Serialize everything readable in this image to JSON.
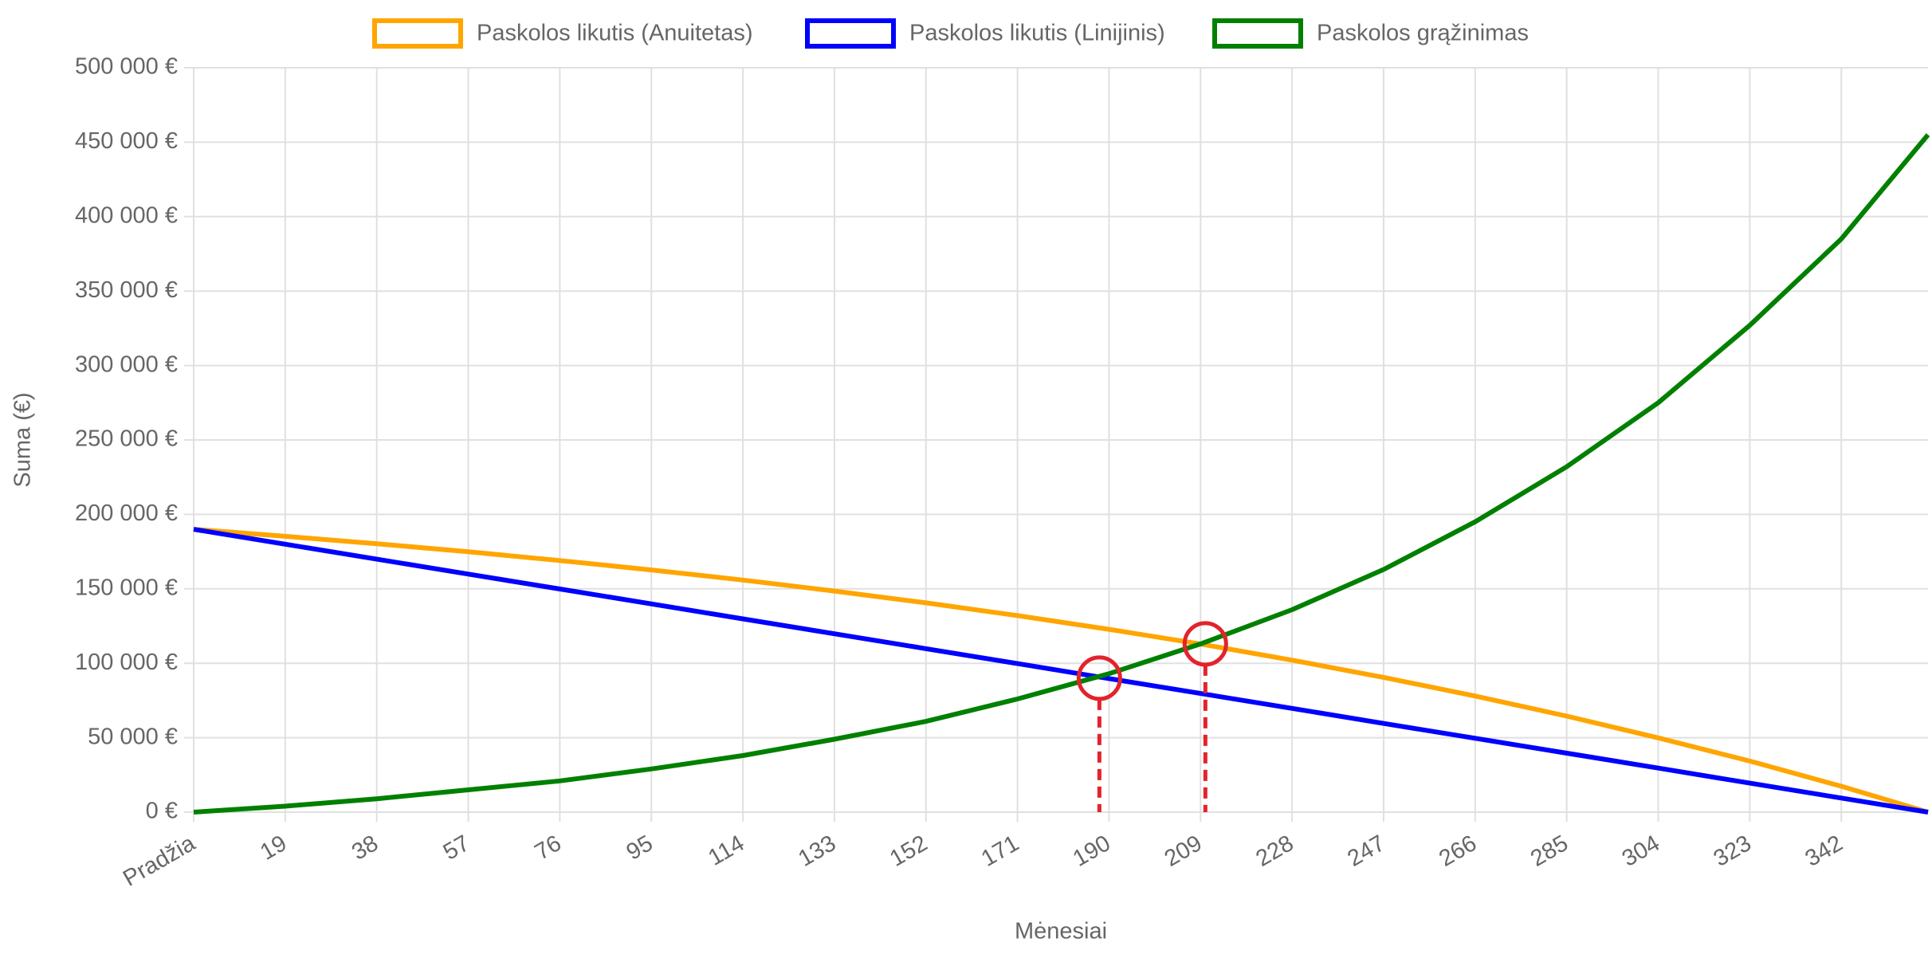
{
  "chart_data": {
    "type": "line",
    "x_label": "Mėnesiai",
    "y_label": "Suma (€)",
    "x": [
      0,
      19,
      38,
      57,
      76,
      95,
      114,
      133,
      152,
      171,
      190,
      209,
      228,
      247,
      266,
      285,
      304,
      323,
      342,
      360
    ],
    "xlim": [
      0,
      360
    ],
    "xticks": [
      {
        "value": 0,
        "label": "Pradžia"
      },
      19,
      38,
      57,
      76,
      95,
      114,
      133,
      152,
      171,
      190,
      209,
      228,
      247,
      266,
      285,
      304,
      323,
      342
    ],
    "ylim": [
      0,
      500000
    ],
    "yticks": [
      {
        "value": 0,
        "label": "0 €"
      },
      {
        "value": 50000,
        "label": "50 000 €"
      },
      {
        "value": 100000,
        "label": "100 000 €"
      },
      {
        "value": 150000,
        "label": "150 000 €"
      },
      {
        "value": 200000,
        "label": "200 000 €"
      },
      {
        "value": 250000,
        "label": "250 000 €"
      },
      {
        "value": 300000,
        "label": "300 000 €"
      },
      {
        "value": 350000,
        "label": "350 000 €"
      },
      {
        "value": 400000,
        "label": "400 000 €"
      },
      {
        "value": 450000,
        "label": "450 000 €"
      },
      {
        "value": 500000,
        "label": "500 000 €"
      }
    ],
    "grid": true,
    "series": [
      {
        "name": "Paskolos likutis (Anuitetas)",
        "color": "#ffa500",
        "values": [
          190000,
          185300,
          180300,
          174900,
          169000,
          162700,
          155900,
          148500,
          140600,
          132000,
          122800,
          112900,
          102100,
          90500,
          78000,
          64500,
          49900,
          34300,
          17400,
          0
        ]
      },
      {
        "name": "Paskolos likutis (Linijinis)",
        "color": "#0000ff",
        "values": [
          190000,
          180000,
          169900,
          159900,
          149900,
          139900,
          129800,
          119800,
          109800,
          99800,
          89700,
          79700,
          69700,
          59600,
          49600,
          39600,
          29600,
          19500,
          9500,
          0
        ]
      },
      {
        "name": "Paskolos grąžinimas",
        "color": "#008000",
        "values": [
          0,
          4000,
          9000,
          15000,
          21000,
          29000,
          38000,
          49000,
          61000,
          76000,
          93000,
          113000,
          136000,
          163000,
          195000,
          232000,
          275000,
          327000,
          385000,
          455000
        ]
      }
    ],
    "markers": [
      {
        "x": 188,
        "y": 90000
      },
      {
        "x": 210,
        "y": 113000
      }
    ],
    "marker_color": "#e3232c"
  }
}
